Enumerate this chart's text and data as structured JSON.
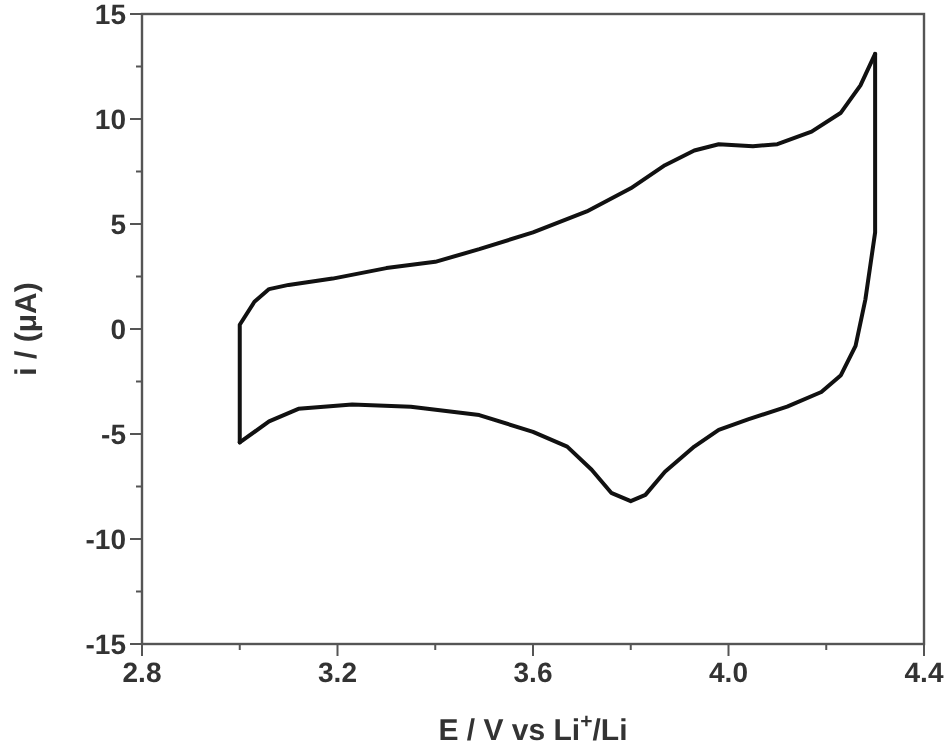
{
  "chart_data": {
    "type": "line",
    "xlabel": "E / V vs Li$^{+}$/Li",
    "ylabel": "i / (μA)",
    "xlim": [
      2.8,
      4.4
    ],
    "ylim": [
      -15,
      15
    ],
    "xticks": [
      2.8,
      {
        "value": 3.0,
        "label": null
      },
      3.2,
      {
        "value": 3.4,
        "label": null
      },
      3.6,
      {
        "value": 3.8,
        "label": null
      },
      {
        "value": 4.0,
        "label": "4.0"
      },
      {
        "value": 4.2,
        "label": null
      },
      4.4
    ],
    "yticks": [
      -15,
      {
        "value": -12.5,
        "label": null
      },
      -10,
      {
        "value": -7.5,
        "label": null
      },
      -5,
      {
        "value": -2.5,
        "label": null
      },
      0,
      {
        "value": 2.5,
        "label": null
      },
      5,
      {
        "value": 7.5,
        "label": null
      },
      10,
      {
        "value": 12.5,
        "label": null
      },
      15
    ],
    "grid": false,
    "marker": "none",
    "line_style": "solid",
    "series": [
      {
        "color": "#111111",
        "x": [
          3.0,
          3.0,
          3.0,
          3.03,
          3.06,
          3.1,
          3.19,
          3.3,
          3.4,
          3.49,
          3.6,
          3.71,
          3.8,
          3.87,
          3.93,
          3.98,
          4.05,
          4.1,
          4.17,
          4.23,
          4.27,
          4.3
        ],
        "values": [
          -5.4,
          -2.1,
          0.2,
          1.3,
          1.9,
          2.1,
          2.4,
          2.9,
          3.2,
          3.8,
          4.6,
          5.6,
          6.7,
          7.8,
          8.5,
          8.8,
          8.7,
          8.8,
          9.4,
          10.3,
          11.6,
          13.1
        ]
      },
      {
        "color": "#111111",
        "x": [
          4.3,
          4.3,
          4.3,
          4.28,
          4.26,
          4.23,
          4.19,
          4.12,
          4.04,
          3.98,
          3.93,
          3.87,
          3.83,
          3.8,
          3.76,
          3.72,
          3.67,
          3.6,
          3.49,
          3.35,
          3.23,
          3.12,
          3.06,
          3.0
        ],
        "values": [
          13.1,
          9.4,
          4.6,
          1.4,
          -0.8,
          -2.2,
          -3.0,
          -3.7,
          -4.3,
          -4.8,
          -5.6,
          -6.8,
          -7.9,
          -8.2,
          -7.8,
          -6.7,
          -5.6,
          -4.9,
          -4.1,
          -3.7,
          -3.6,
          -3.8,
          -4.4,
          -5.4
        ]
      }
    ]
  }
}
